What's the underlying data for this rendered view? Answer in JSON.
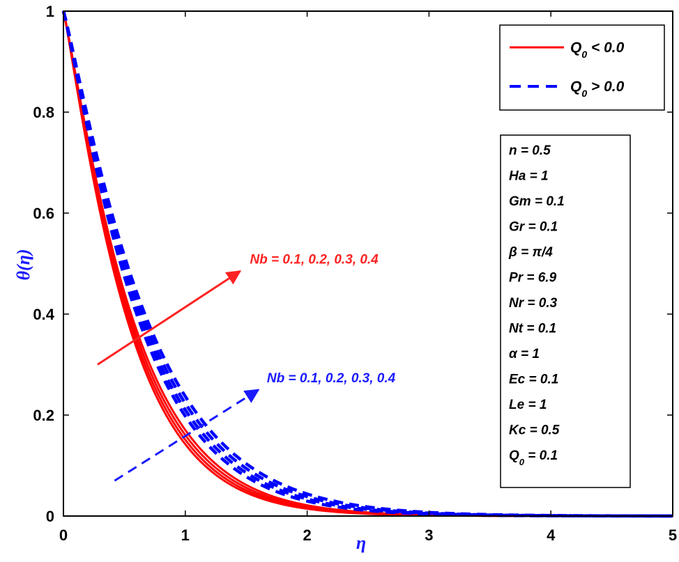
{
  "chart_data": {
    "type": "line",
    "title": "",
    "xlabel": "η",
    "ylabel": "θ(η)",
    "xlim": [
      0,
      5
    ],
    "ylim": [
      0,
      1
    ],
    "xticks": [
      "0",
      "1",
      "2",
      "3",
      "4",
      "5"
    ],
    "yticks": [
      "0",
      "0.2",
      "0.4",
      "0.6",
      "0.8",
      "1"
    ],
    "grid": false,
    "legend_position": "top-right",
    "legend": [
      {
        "label": "Q",
        "sub": "0",
        "op": " < 0.0",
        "color": "#ff0000",
        "style": "solid"
      },
      {
        "label": "Q",
        "sub": "0",
        "op": " > 0.0",
        "color": "#0000ff",
        "style": "dashed"
      }
    ],
    "series": [
      {
        "group": "Q0<0",
        "nb": 0.1,
        "color": "#ff0000",
        "style": "solid",
        "decay": 1.95
      },
      {
        "group": "Q0<0",
        "nb": 0.2,
        "color": "#ff0000",
        "style": "solid",
        "decay": 1.89
      },
      {
        "group": "Q0<0",
        "nb": 0.3,
        "color": "#ff0000",
        "style": "solid",
        "decay": 1.83
      },
      {
        "group": "Q0<0",
        "nb": 0.4,
        "color": "#ff0000",
        "style": "solid",
        "decay": 1.77
      },
      {
        "group": "Q0>0",
        "nb": 0.1,
        "color": "#0000ff",
        "style": "dashed",
        "decay": 1.62
      },
      {
        "group": "Q0>0",
        "nb": 0.2,
        "color": "#0000ff",
        "style": "dashed",
        "decay": 1.56
      },
      {
        "group": "Q0>0",
        "nb": 0.3,
        "color": "#0000ff",
        "style": "dashed",
        "decay": 1.5
      },
      {
        "group": "Q0>0",
        "nb": 0.4,
        "color": "#0000ff",
        "style": "dashed",
        "decay": 1.44
      }
    ],
    "annotations": [
      {
        "text": "Nb = 0.1, 0.2, 0.3, 0.4",
        "color": "#ff2222",
        "arrow_from": [
          0.28,
          0.3
        ],
        "arrow_to": [
          1.45,
          0.485
        ],
        "text_at": [
          1.53,
          0.5
        ],
        "style": "solid"
      },
      {
        "text": "Nb = 0.1, 0.2, 0.3, 0.4",
        "color": "#1a1aff",
        "arrow_from": [
          0.42,
          0.07
        ],
        "arrow_to": [
          1.6,
          0.25
        ],
        "text_at": [
          1.67,
          0.265
        ],
        "style": "dashed"
      }
    ],
    "parameters": [
      "n = 0.5",
      "Ha = 1",
      "Gm = 0.1",
      "Gr = 0.1",
      "β = π/4",
      "Pr = 6.9",
      "Nr = 0.3",
      "Nt = 0.1",
      "α = 1",
      "Ec = 0.1",
      "Le = 1",
      "Kc = 0.5",
      "Q0 = 0.1"
    ]
  }
}
